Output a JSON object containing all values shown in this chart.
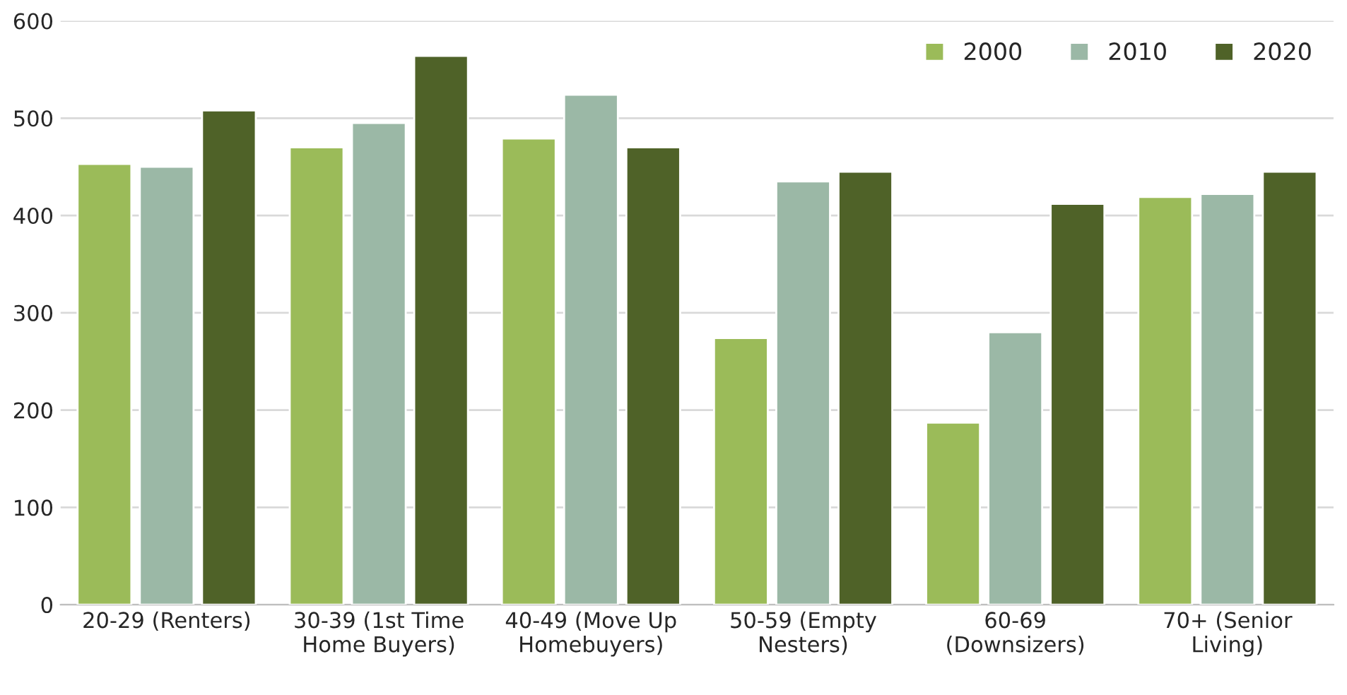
{
  "chart_data": {
    "type": "bar",
    "categories": [
      "20-29 (Renters)",
      "30-39 (1st Time\nHome Buyers)",
      "40-49 (Move Up\nHomebuyers)",
      "50-59 (Empty\nNesters)",
      "60-69\n(Downsizers)",
      "70+ (Senior\nLiving)"
    ],
    "series": [
      {
        "name": "2000",
        "color": "#9bbb59",
        "values": [
          453,
          470,
          479,
          274,
          187,
          419
        ]
      },
      {
        "name": "2010",
        "color": "#9bb8a6",
        "values": [
          450,
          495,
          524,
          435,
          280,
          422
        ]
      },
      {
        "name": "2020",
        "color": "#4f6228",
        "values": [
          508,
          564,
          470,
          445,
          412,
          445
        ]
      }
    ],
    "ylim": [
      0,
      600
    ],
    "yticks": [
      0,
      100,
      200,
      300,
      400,
      500,
      600
    ],
    "grid": "y",
    "legend": "top right"
  }
}
